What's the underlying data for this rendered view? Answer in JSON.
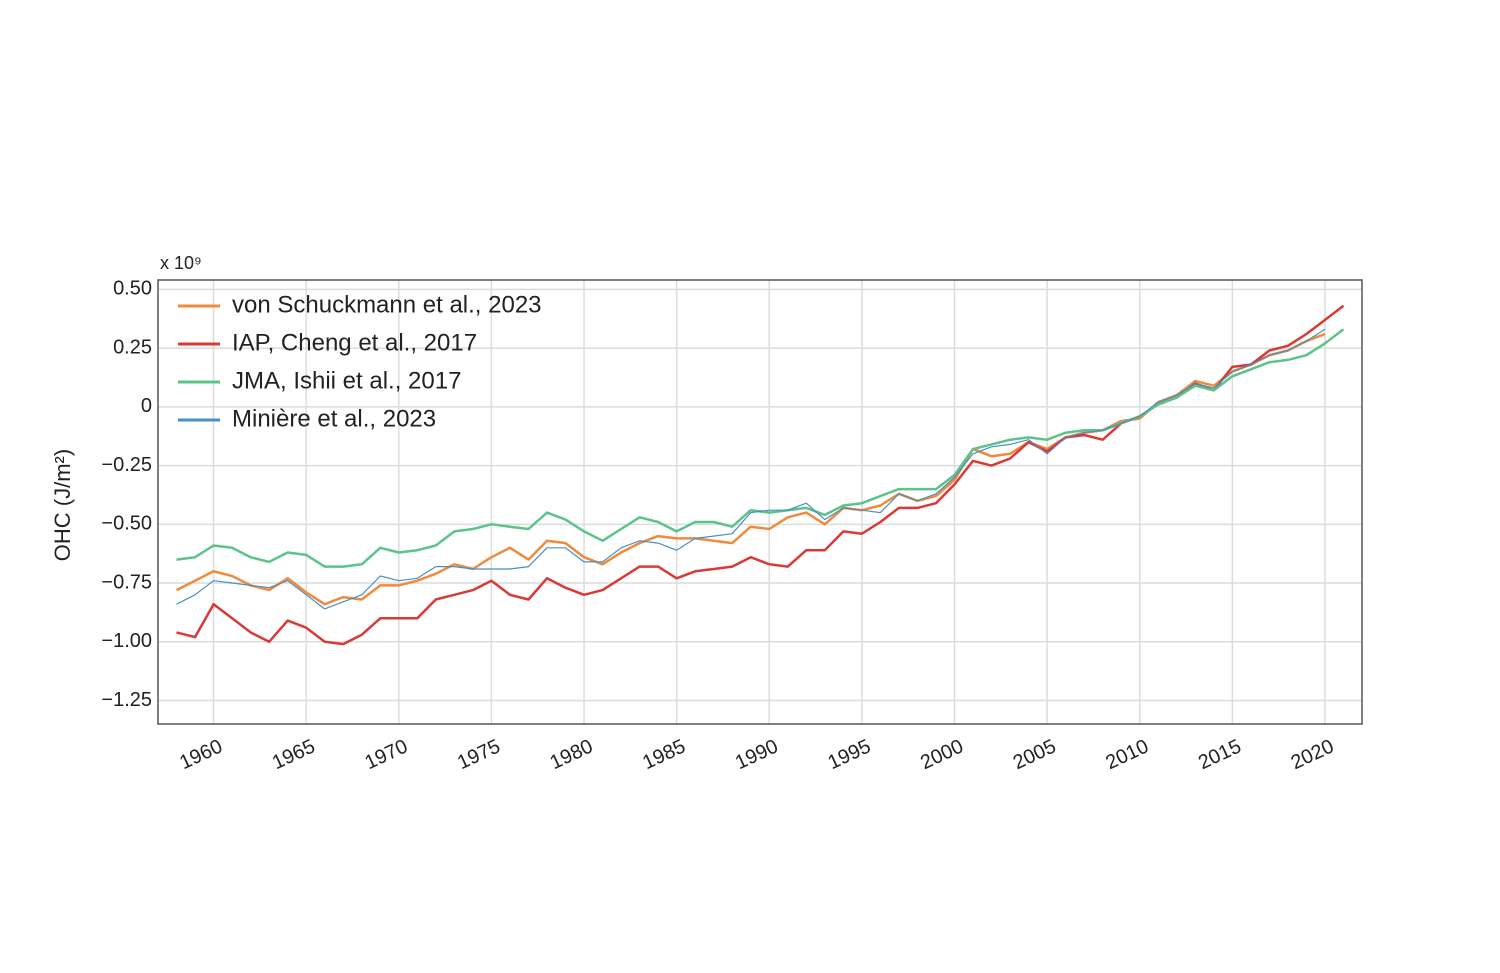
{
  "chart_data": {
    "type": "line",
    "y_axis_label": "OHC (J/m²)",
    "y_scale_note": "x 10⁹",
    "x": [
      1958,
      1959,
      1960,
      1961,
      1962,
      1963,
      1964,
      1965,
      1966,
      1967,
      1968,
      1969,
      1970,
      1971,
      1972,
      1973,
      1974,
      1975,
      1976,
      1977,
      1978,
      1979,
      1980,
      1981,
      1982,
      1983,
      1984,
      1985,
      1986,
      1987,
      1988,
      1989,
      1990,
      1991,
      1992,
      1993,
      1994,
      1995,
      1996,
      1997,
      1998,
      1999,
      2000,
      2001,
      2002,
      2003,
      2004,
      2005,
      2006,
      2007,
      2008,
      2009,
      2010,
      2011,
      2012,
      2013,
      2014,
      2015,
      2016,
      2017,
      2018,
      2019,
      2020,
      2021
    ],
    "series": [
      {
        "name": "von Schuckmann et al., 2023",
        "color": "#f08a3c",
        "width": 2.5,
        "values": [
          -0.78,
          -0.74,
          -0.7,
          -0.72,
          -0.76,
          -0.78,
          -0.73,
          -0.79,
          -0.84,
          -0.81,
          -0.82,
          -0.76,
          -0.76,
          -0.74,
          -0.71,
          -0.67,
          -0.69,
          -0.64,
          -0.6,
          -0.65,
          -0.57,
          -0.58,
          -0.64,
          -0.67,
          -0.62,
          -0.58,
          -0.55,
          -0.56,
          -0.56,
          -0.57,
          -0.58,
          -0.51,
          -0.52,
          -0.47,
          -0.45,
          -0.5,
          -0.43,
          -0.44,
          -0.42,
          -0.37,
          -0.4,
          -0.38,
          -0.31,
          -0.18,
          -0.21,
          -0.2,
          -0.15,
          -0.18,
          -0.13,
          -0.11,
          -0.1,
          -0.06,
          -0.05,
          0.02,
          0.05,
          0.11,
          0.09,
          0.15,
          0.18,
          0.22,
          0.24,
          0.28,
          0.31,
          null
        ]
      },
      {
        "name": "IAP, Cheng et al., 2017",
        "color": "#d93a35",
        "width": 2.5,
        "values": [
          -0.96,
          -0.98,
          -0.84,
          -0.9,
          -0.96,
          -1.0,
          -0.91,
          -0.94,
          -1.0,
          -1.01,
          -0.97,
          -0.9,
          -0.9,
          -0.9,
          -0.82,
          -0.8,
          -0.78,
          -0.74,
          -0.8,
          -0.82,
          -0.73,
          -0.77,
          -0.8,
          -0.78,
          -0.73,
          -0.68,
          -0.68,
          -0.73,
          -0.7,
          -0.69,
          -0.68,
          -0.64,
          -0.67,
          -0.68,
          -0.61,
          -0.61,
          -0.53,
          -0.54,
          -0.49,
          -0.43,
          -0.43,
          -0.41,
          -0.33,
          -0.23,
          -0.25,
          -0.22,
          -0.15,
          -0.19,
          -0.13,
          -0.12,
          -0.14,
          -0.07,
          -0.04,
          0.01,
          0.04,
          0.1,
          0.07,
          0.17,
          0.18,
          0.24,
          0.26,
          0.31,
          0.37,
          0.43
        ]
      },
      {
        "name": "JMA, Ishii et al., 2017",
        "color": "#5cc48a",
        "width": 2.5,
        "values": [
          -0.65,
          -0.64,
          -0.59,
          -0.6,
          -0.64,
          -0.66,
          -0.62,
          -0.63,
          -0.68,
          -0.68,
          -0.67,
          -0.6,
          -0.62,
          -0.61,
          -0.59,
          -0.53,
          -0.52,
          -0.5,
          -0.51,
          -0.52,
          -0.45,
          -0.48,
          -0.53,
          -0.57,
          -0.52,
          -0.47,
          -0.49,
          -0.53,
          -0.49,
          -0.49,
          -0.51,
          -0.44,
          -0.45,
          -0.44,
          -0.43,
          -0.46,
          -0.42,
          -0.41,
          -0.38,
          -0.35,
          -0.35,
          -0.35,
          -0.29,
          -0.18,
          -0.16,
          -0.14,
          -0.13,
          -0.14,
          -0.11,
          -0.1,
          -0.1,
          -0.07,
          -0.04,
          0.01,
          0.04,
          0.09,
          0.07,
          0.13,
          0.16,
          0.19,
          0.2,
          0.22,
          0.27,
          0.33
        ]
      },
      {
        "name": "Minière et al., 2023",
        "color": "#4a8fc4",
        "width": 1.2,
        "values": [
          -0.84,
          -0.8,
          -0.74,
          -0.75,
          -0.76,
          -0.77,
          -0.74,
          -0.8,
          -0.86,
          -0.83,
          -0.8,
          -0.72,
          -0.74,
          -0.73,
          -0.68,
          -0.68,
          -0.69,
          -0.69,
          -0.69,
          -0.68,
          -0.6,
          -0.6,
          -0.66,
          -0.66,
          -0.6,
          -0.57,
          -0.58,
          -0.61,
          -0.56,
          -0.55,
          -0.54,
          -0.45,
          -0.44,
          -0.44,
          -0.41,
          -0.48,
          -0.43,
          -0.44,
          -0.45,
          -0.37,
          -0.4,
          -0.37,
          -0.3,
          -0.2,
          -0.17,
          -0.16,
          -0.14,
          -0.2,
          -0.13,
          -0.11,
          -0.1,
          -0.07,
          -0.04,
          0.02,
          0.05,
          0.1,
          0.08,
          0.15,
          0.18,
          0.22,
          0.24,
          0.28,
          0.33,
          null
        ]
      }
    ],
    "xlim": [
      1957,
      2022
    ],
    "xticks": [
      1960,
      1965,
      1970,
      1975,
      1980,
      1985,
      1990,
      1995,
      2000,
      2005,
      2010,
      2015,
      2020
    ],
    "ylim": [
      -1.35,
      0.54
    ],
    "yticks": [
      {
        "value": 0.5,
        "label": "0.50"
      },
      {
        "value": 0.25,
        "label": "0.25"
      },
      0,
      {
        "value": -0.25,
        "label": "−0.25"
      },
      {
        "value": -0.5,
        "label": "−0.50"
      },
      {
        "value": -0.75,
        "label": "−0.75"
      },
      {
        "value": -1,
        "label": "−1.00"
      },
      {
        "value": -1.25,
        "label": "−1.25"
      }
    ],
    "grid": true,
    "legend_position": "upper-left"
  }
}
